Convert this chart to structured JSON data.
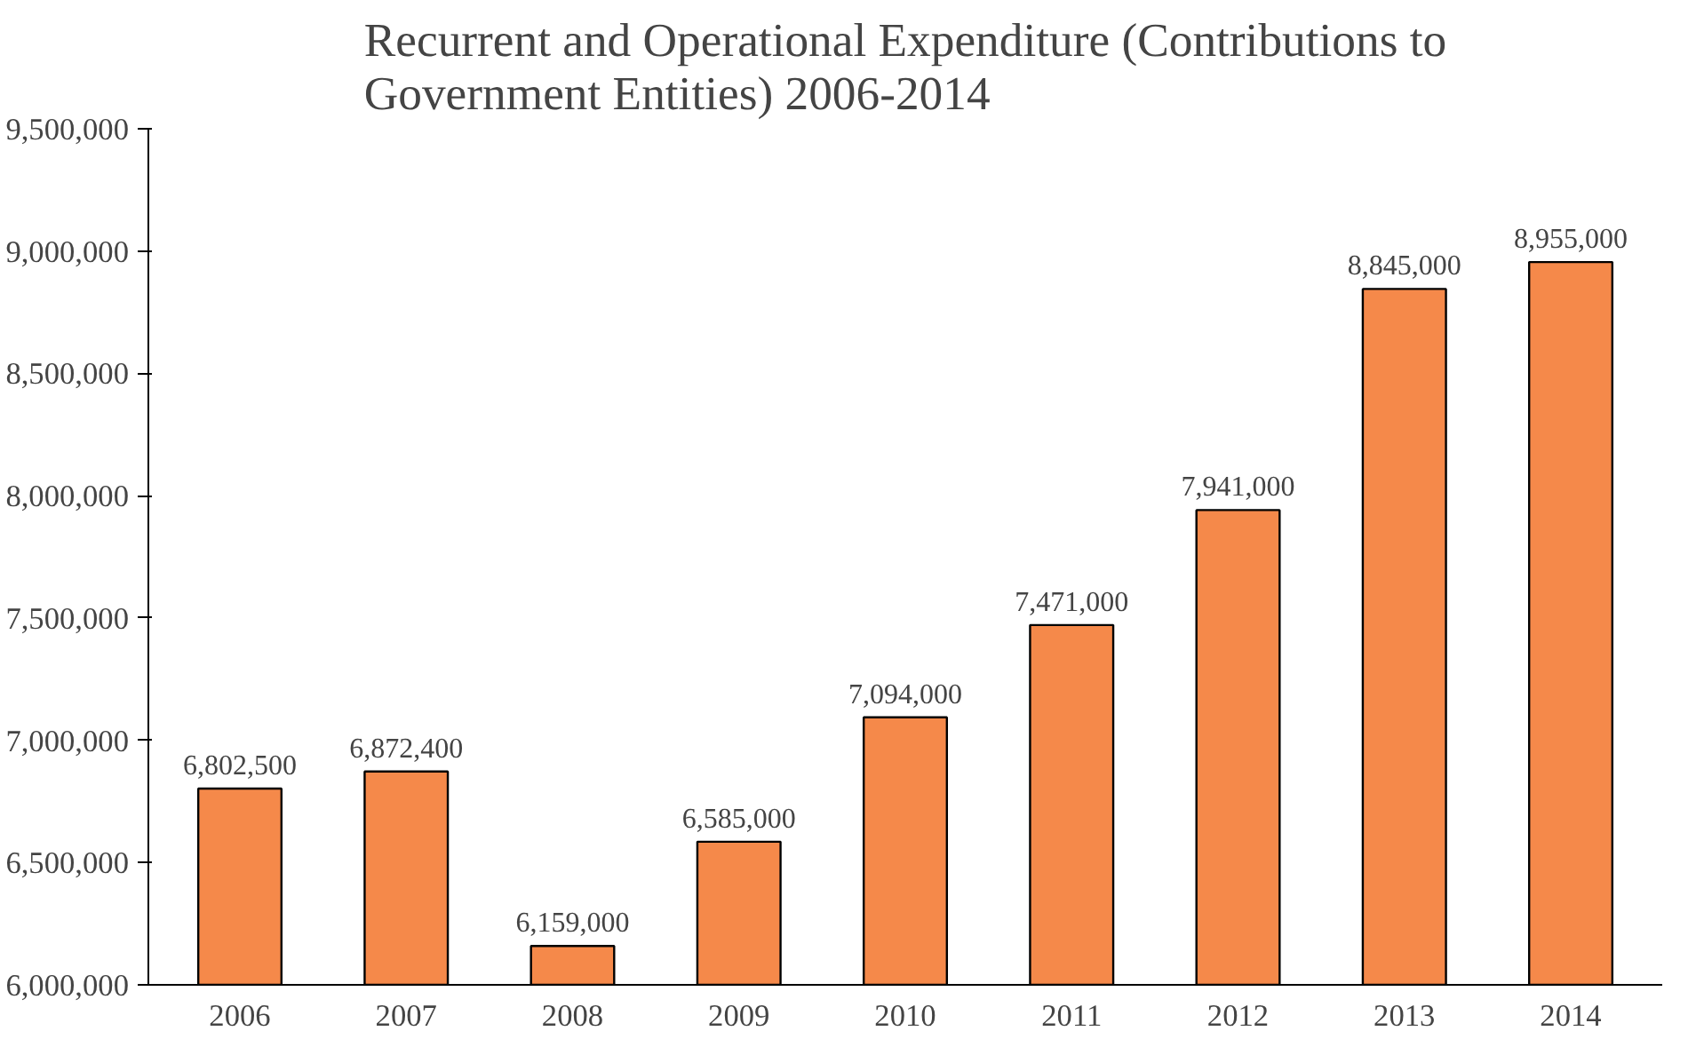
{
  "chart_data": {
    "type": "bar",
    "title": "Recurrent and Operational Expenditure (Contributions to\nGovernment Entities) 2006-2014",
    "categories": [
      "2006",
      "2007",
      "2008",
      "2009",
      "2010",
      "2011",
      "2012",
      "2013",
      "2014"
    ],
    "values": [
      6802500,
      6872400,
      6159000,
      6585000,
      7094000,
      7471000,
      7941000,
      8845000,
      8955000
    ],
    "value_labels": [
      "6,802,500",
      "6,872,400",
      "6,159,000",
      "6,585,000",
      "7,094,000",
      "7,471,000",
      "7,941,000",
      "8,845,000",
      "8,955,000"
    ],
    "color": "#f5894a",
    "ylim": [
      6000000,
      9500000
    ],
    "yticks": [
      {
        "value": 6000000,
        "label": "6,000,000"
      },
      {
        "value": 6500000,
        "label": "6,500,000"
      },
      {
        "value": 7000000,
        "label": "7,000,000"
      },
      {
        "value": 7500000,
        "label": "7,500,000"
      },
      {
        "value": 8000000,
        "label": "8,000,000"
      },
      {
        "value": 8500000,
        "label": "8,500,000"
      },
      {
        "value": 9000000,
        "label": "9,000,000"
      },
      {
        "value": 9500000,
        "label": "9,500,000"
      }
    ],
    "grid": false
  }
}
